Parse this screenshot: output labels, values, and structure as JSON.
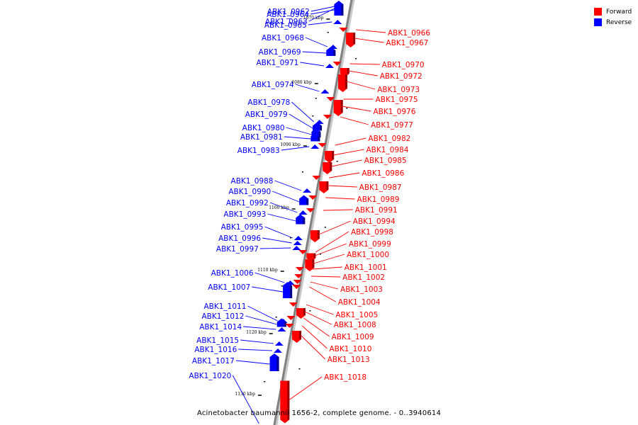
{
  "colors": {
    "forward": "#ff0000",
    "reverse": "#0000ff",
    "axis": "#808080"
  },
  "legend": [
    {
      "label": "Forward",
      "color": "#ff0000"
    },
    {
      "label": "Reverse",
      "color": "#0000ff"
    }
  ],
  "caption": "Acinetobacter baumannii 1656-2, complete genome. - 0..3940614",
  "ruler_labels": [
    "1070 kbp",
    "1080 kbp",
    "1090 kbp",
    "1100 kbp",
    "1110 kbp",
    "1120 kbp",
    "1130 kbp"
  ],
  "reverse_genes": [
    "ABK1_0962",
    "ABK1_0963",
    "ABK1_0964",
    "ABK1_0965",
    "ABK1_0968",
    "ABK1_0969",
    "ABK1_0971",
    "ABK1_0974",
    "ABK1_0978",
    "ABK1_0979",
    "ABK1_0980",
    "ABK1_0981",
    "ABK1_0983",
    "ABK1_0988",
    "ABK1_0990",
    "ABK1_0992",
    "ABK1_0993",
    "ABK1_0995",
    "ABK1_0996",
    "ABK1_0997",
    "ABK1_1006",
    "ABK1_1007",
    "ABK1_1011",
    "ABK1_1012",
    "ABK1_1014",
    "ABK1_1015",
    "ABK1_1016",
    "ABK1_1017",
    "ABK1_1020"
  ],
  "forward_genes": [
    "ABK1_0966",
    "ABK1_0967",
    "ABK1_0970",
    "ABK1_0972",
    "ABK1_0973",
    "ABK1_0975",
    "ABK1_0976",
    "ABK1_0977",
    "ABK1_0982",
    "ABK1_0984",
    "ABK1_0985",
    "ABK1_0986",
    "ABK1_0987",
    "ABK1_0989",
    "ABK1_0991",
    "ABK1_0994",
    "ABK1_0998",
    "ABK1_0999",
    "ABK1_1000",
    "ABK1_1001",
    "ABK1_1002",
    "ABK1_1003",
    "ABK1_1004",
    "ABK1_1005",
    "ABK1_1008",
    "ABK1_1009",
    "ABK1_1010",
    "ABK1_1013",
    "ABK1_1018"
  ]
}
